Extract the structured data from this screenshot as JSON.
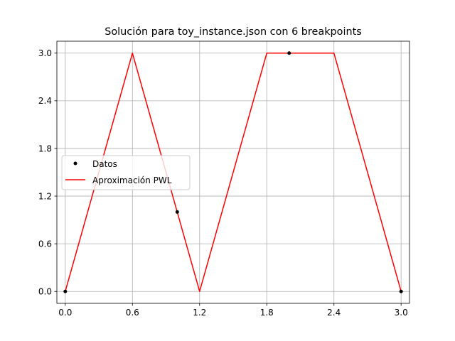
{
  "chart_data": {
    "type": "line",
    "title": "Solución para toy_instance.json con 6 breakpoints",
    "xlabel": "",
    "ylabel": "",
    "xlim": [
      -0.075,
      3.075
    ],
    "ylim": [
      -0.15,
      3.15
    ],
    "xticks": [
      "0.0",
      "0.6",
      "1.2",
      "1.8",
      "2.4",
      "3.0"
    ],
    "yticks": [
      "0.0",
      "0.6",
      "1.2",
      "1.8",
      "2.4",
      "3.0"
    ],
    "grid": true,
    "legend_position": "center-left",
    "series": [
      {
        "name": "Datos",
        "kind": "scatter",
        "color": "#000000",
        "x": [
          0.0,
          1.0,
          2.0,
          3.0
        ],
        "y": [
          0.0,
          1.0,
          3.0,
          0.0
        ]
      },
      {
        "name": "Aproximación PWL",
        "kind": "line",
        "color": "#ff0000",
        "x": [
          0.0,
          0.6,
          1.2,
          1.8,
          2.4,
          3.0
        ],
        "y": [
          0.0,
          3.0,
          0.0,
          3.0,
          3.0,
          0.0
        ]
      }
    ]
  }
}
